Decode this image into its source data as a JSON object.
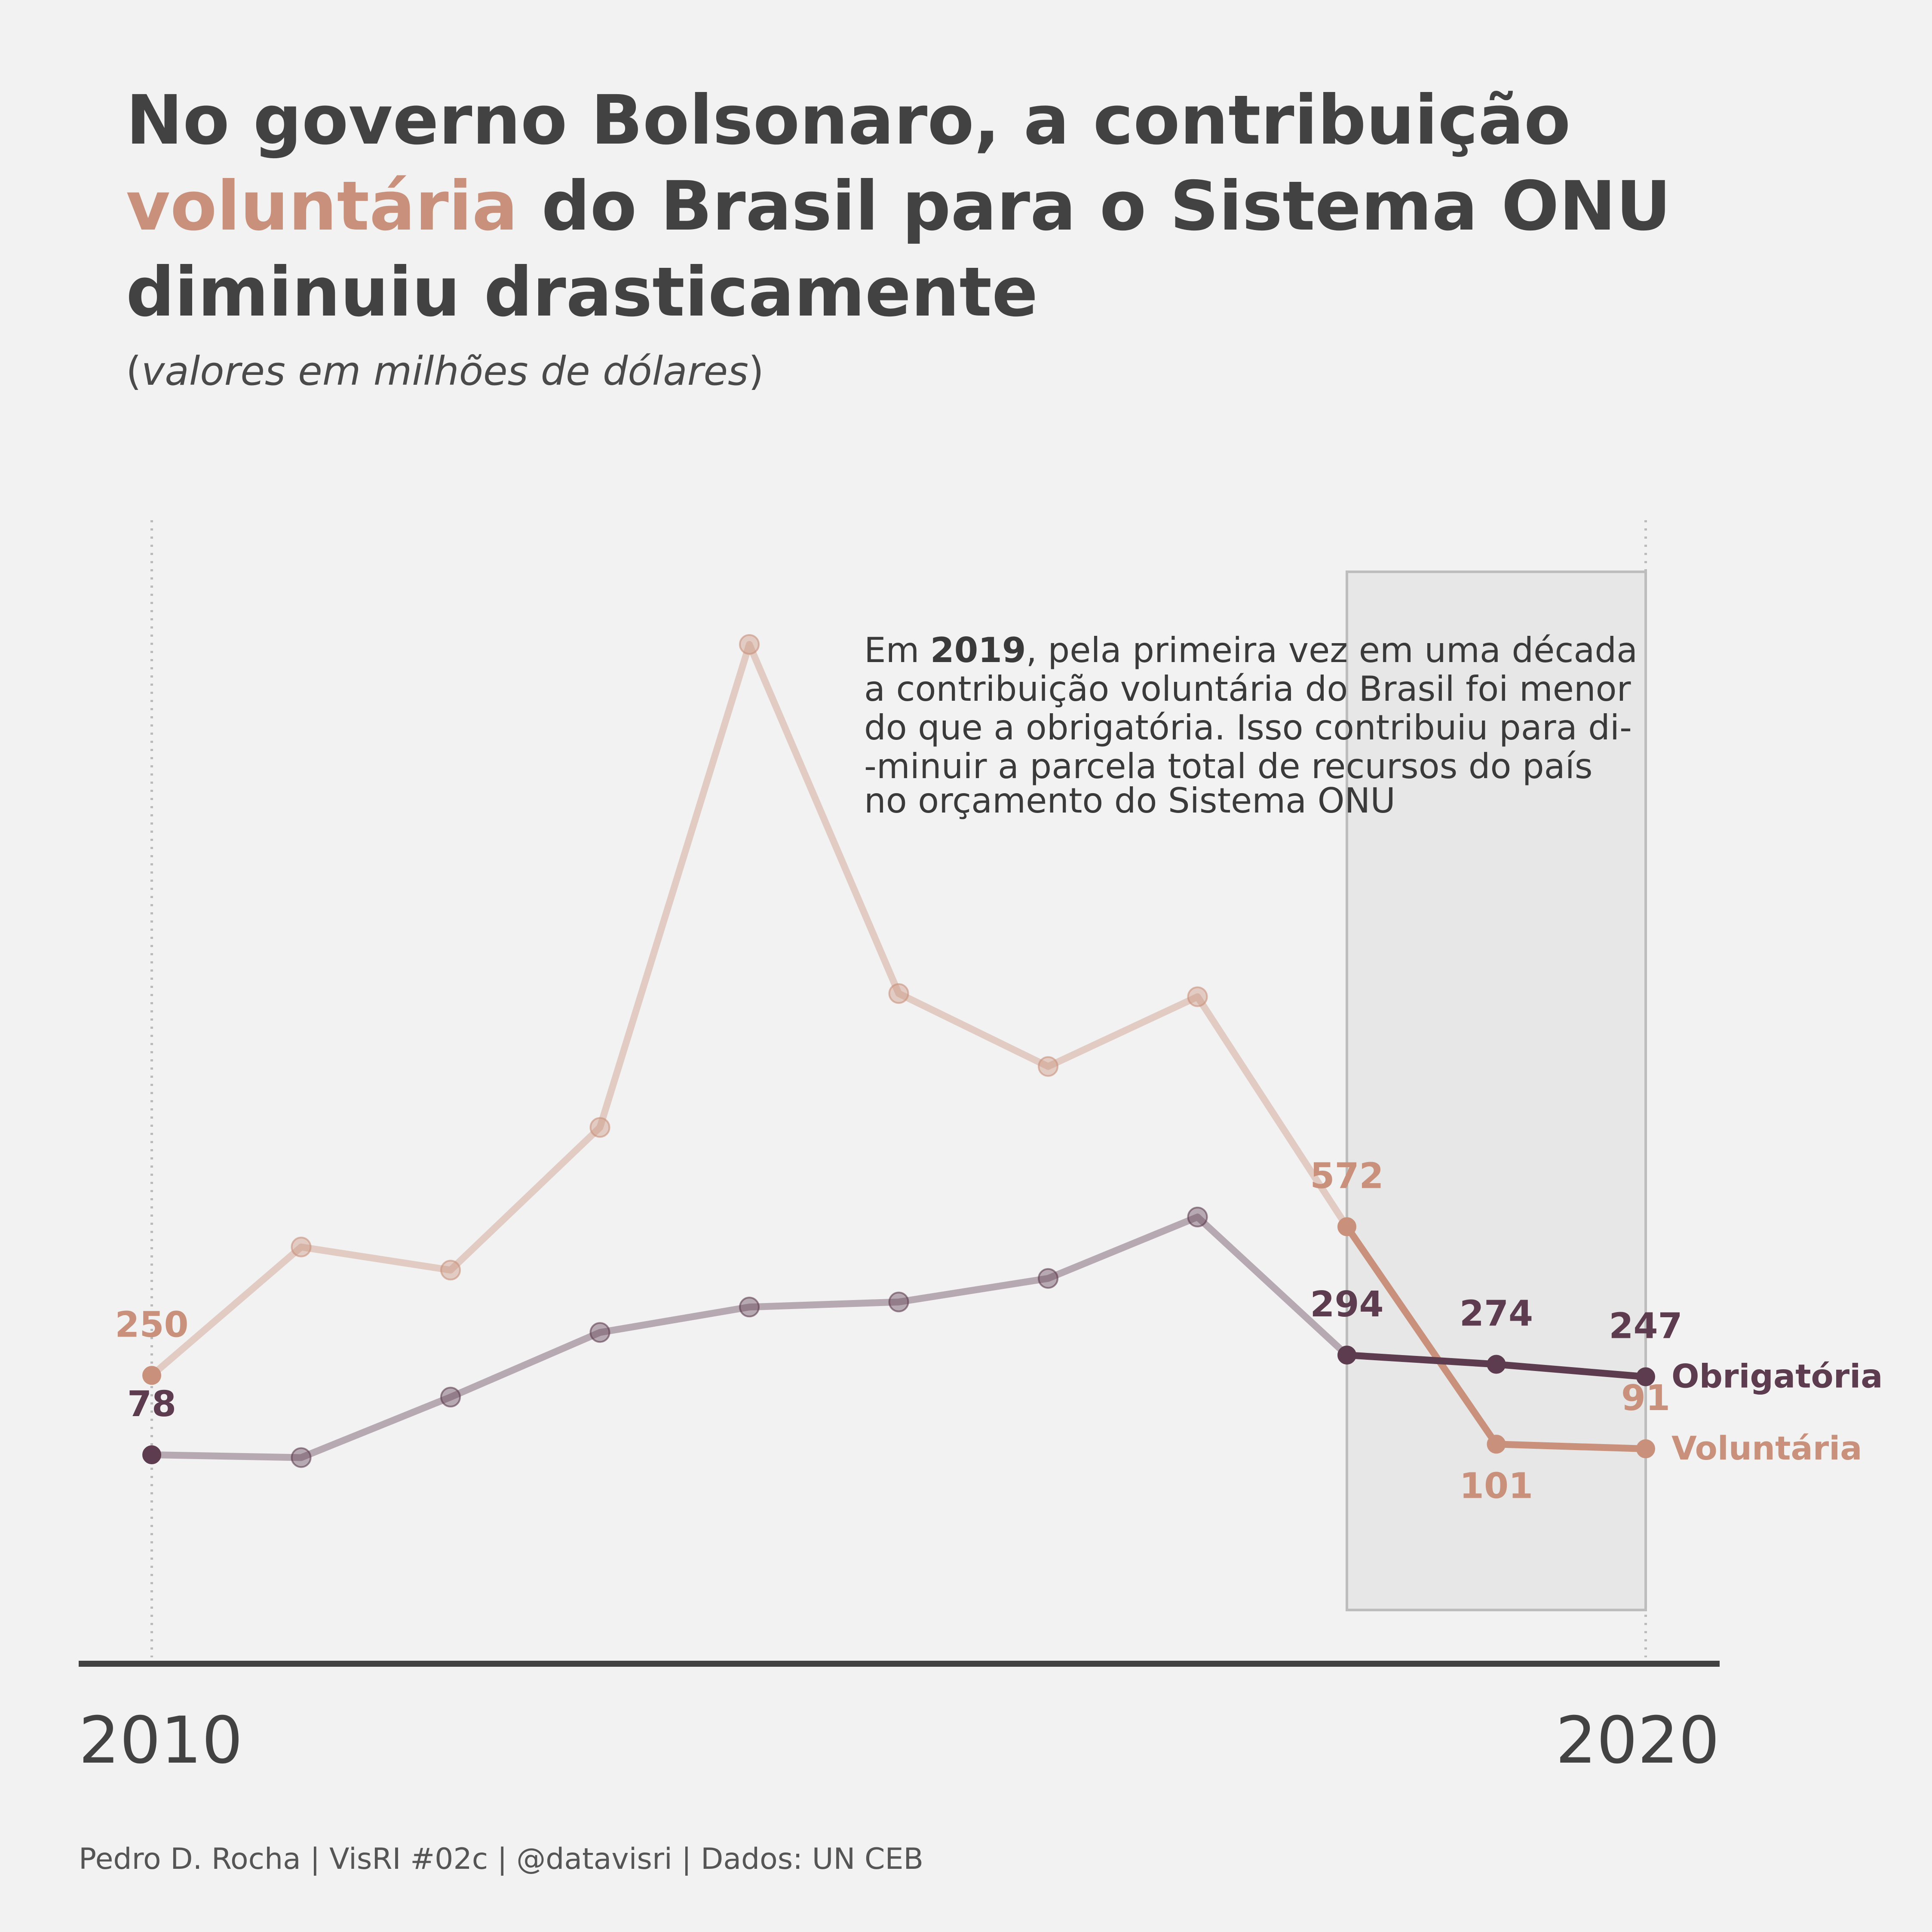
{
  "title": {
    "part1": "No governo Bolsonaro, a contribuição",
    "highlight": "voluntária",
    "part2": "do Brasil para o Sistema ONU",
    "part3": "diminuiu drasticamente"
  },
  "subtitle": {
    "open": "(",
    "text": "valores em milhões de dólares",
    "close": ")"
  },
  "annotation": {
    "line1_pre": "Em ",
    "line1_bold": "2019",
    "line1_post": ", pela primeira vez em uma década",
    "line2": "a contribuição voluntária do Brasil foi menor",
    "line3": "do que a obrigatória. Isso contribuiu para di-",
    "line4": "-minuir a parcela total de recursos do país",
    "line5": "no orçamento do Sistema ONU"
  },
  "footer": "Pedro D. Rocha | VisRI #02c | @datavisri | Dados: UN CEB",
  "colors": {
    "voluntaria": "#c9917b",
    "obrigatoria": "#5e3c4f",
    "background": "#f2f2f2",
    "highlight_box": "#e7e7e7"
  },
  "chart_data": {
    "type": "line",
    "x": [
      2010,
      2011,
      2012,
      2013,
      2014,
      2015,
      2016,
      2017,
      2018,
      2019,
      2020
    ],
    "x_tick_labels": [
      "2010",
      "2020"
    ],
    "series": [
      {
        "name": "Voluntária",
        "values": [
          250,
          528,
          478,
          787,
          1833,
          1077,
          919,
          1070,
          572,
          101,
          91
        ],
        "labels": {
          "2010": "250",
          "2018": "572",
          "2019": "101",
          "2020": "91"
        }
      },
      {
        "name": "Obrigatória",
        "values": [
          78,
          72,
          203,
          343,
          398,
          409,
          460,
          593,
          294,
          274,
          247
        ],
        "labels": {
          "2010": "78",
          "2018": "294",
          "2019": "274",
          "2020": "247"
        }
      }
    ],
    "highlight_range": [
      2018,
      2020
    ],
    "ylim": [
      -300,
      2130
    ],
    "grid": false
  }
}
